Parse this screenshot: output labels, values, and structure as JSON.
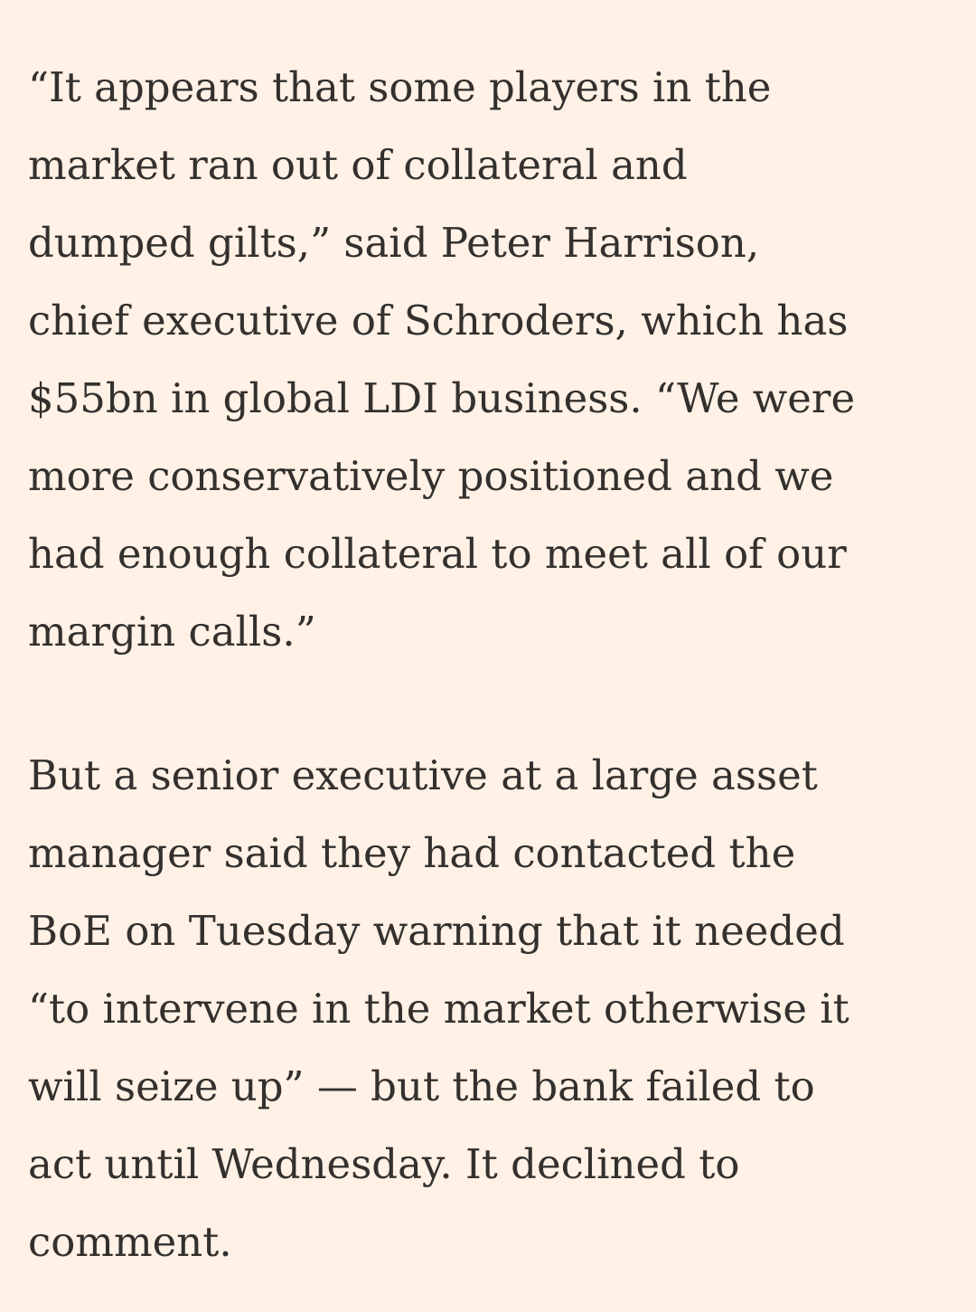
{
  "paragraphs": [
    {
      "lines": [
        "“It appears that some players in the",
        "market ran out of collateral and",
        "dumped gilts,” said Peter Harrison,",
        "chief executive of Schroders, which has",
        "$55bn in global LDI business. “We were",
        "more conservatively positioned and we",
        "had enough collateral to meet all of our",
        "margin calls.”"
      ]
    },
    {
      "lines": [
        "But a senior executive at a large asset",
        "manager said they had contacted the",
        "BoE on Tuesday warning that it needed",
        "“to intervene in the market otherwise it",
        "will seize up” — but the bank failed to",
        "act until Wednesday. It declined to",
        "comment."
      ]
    }
  ]
}
